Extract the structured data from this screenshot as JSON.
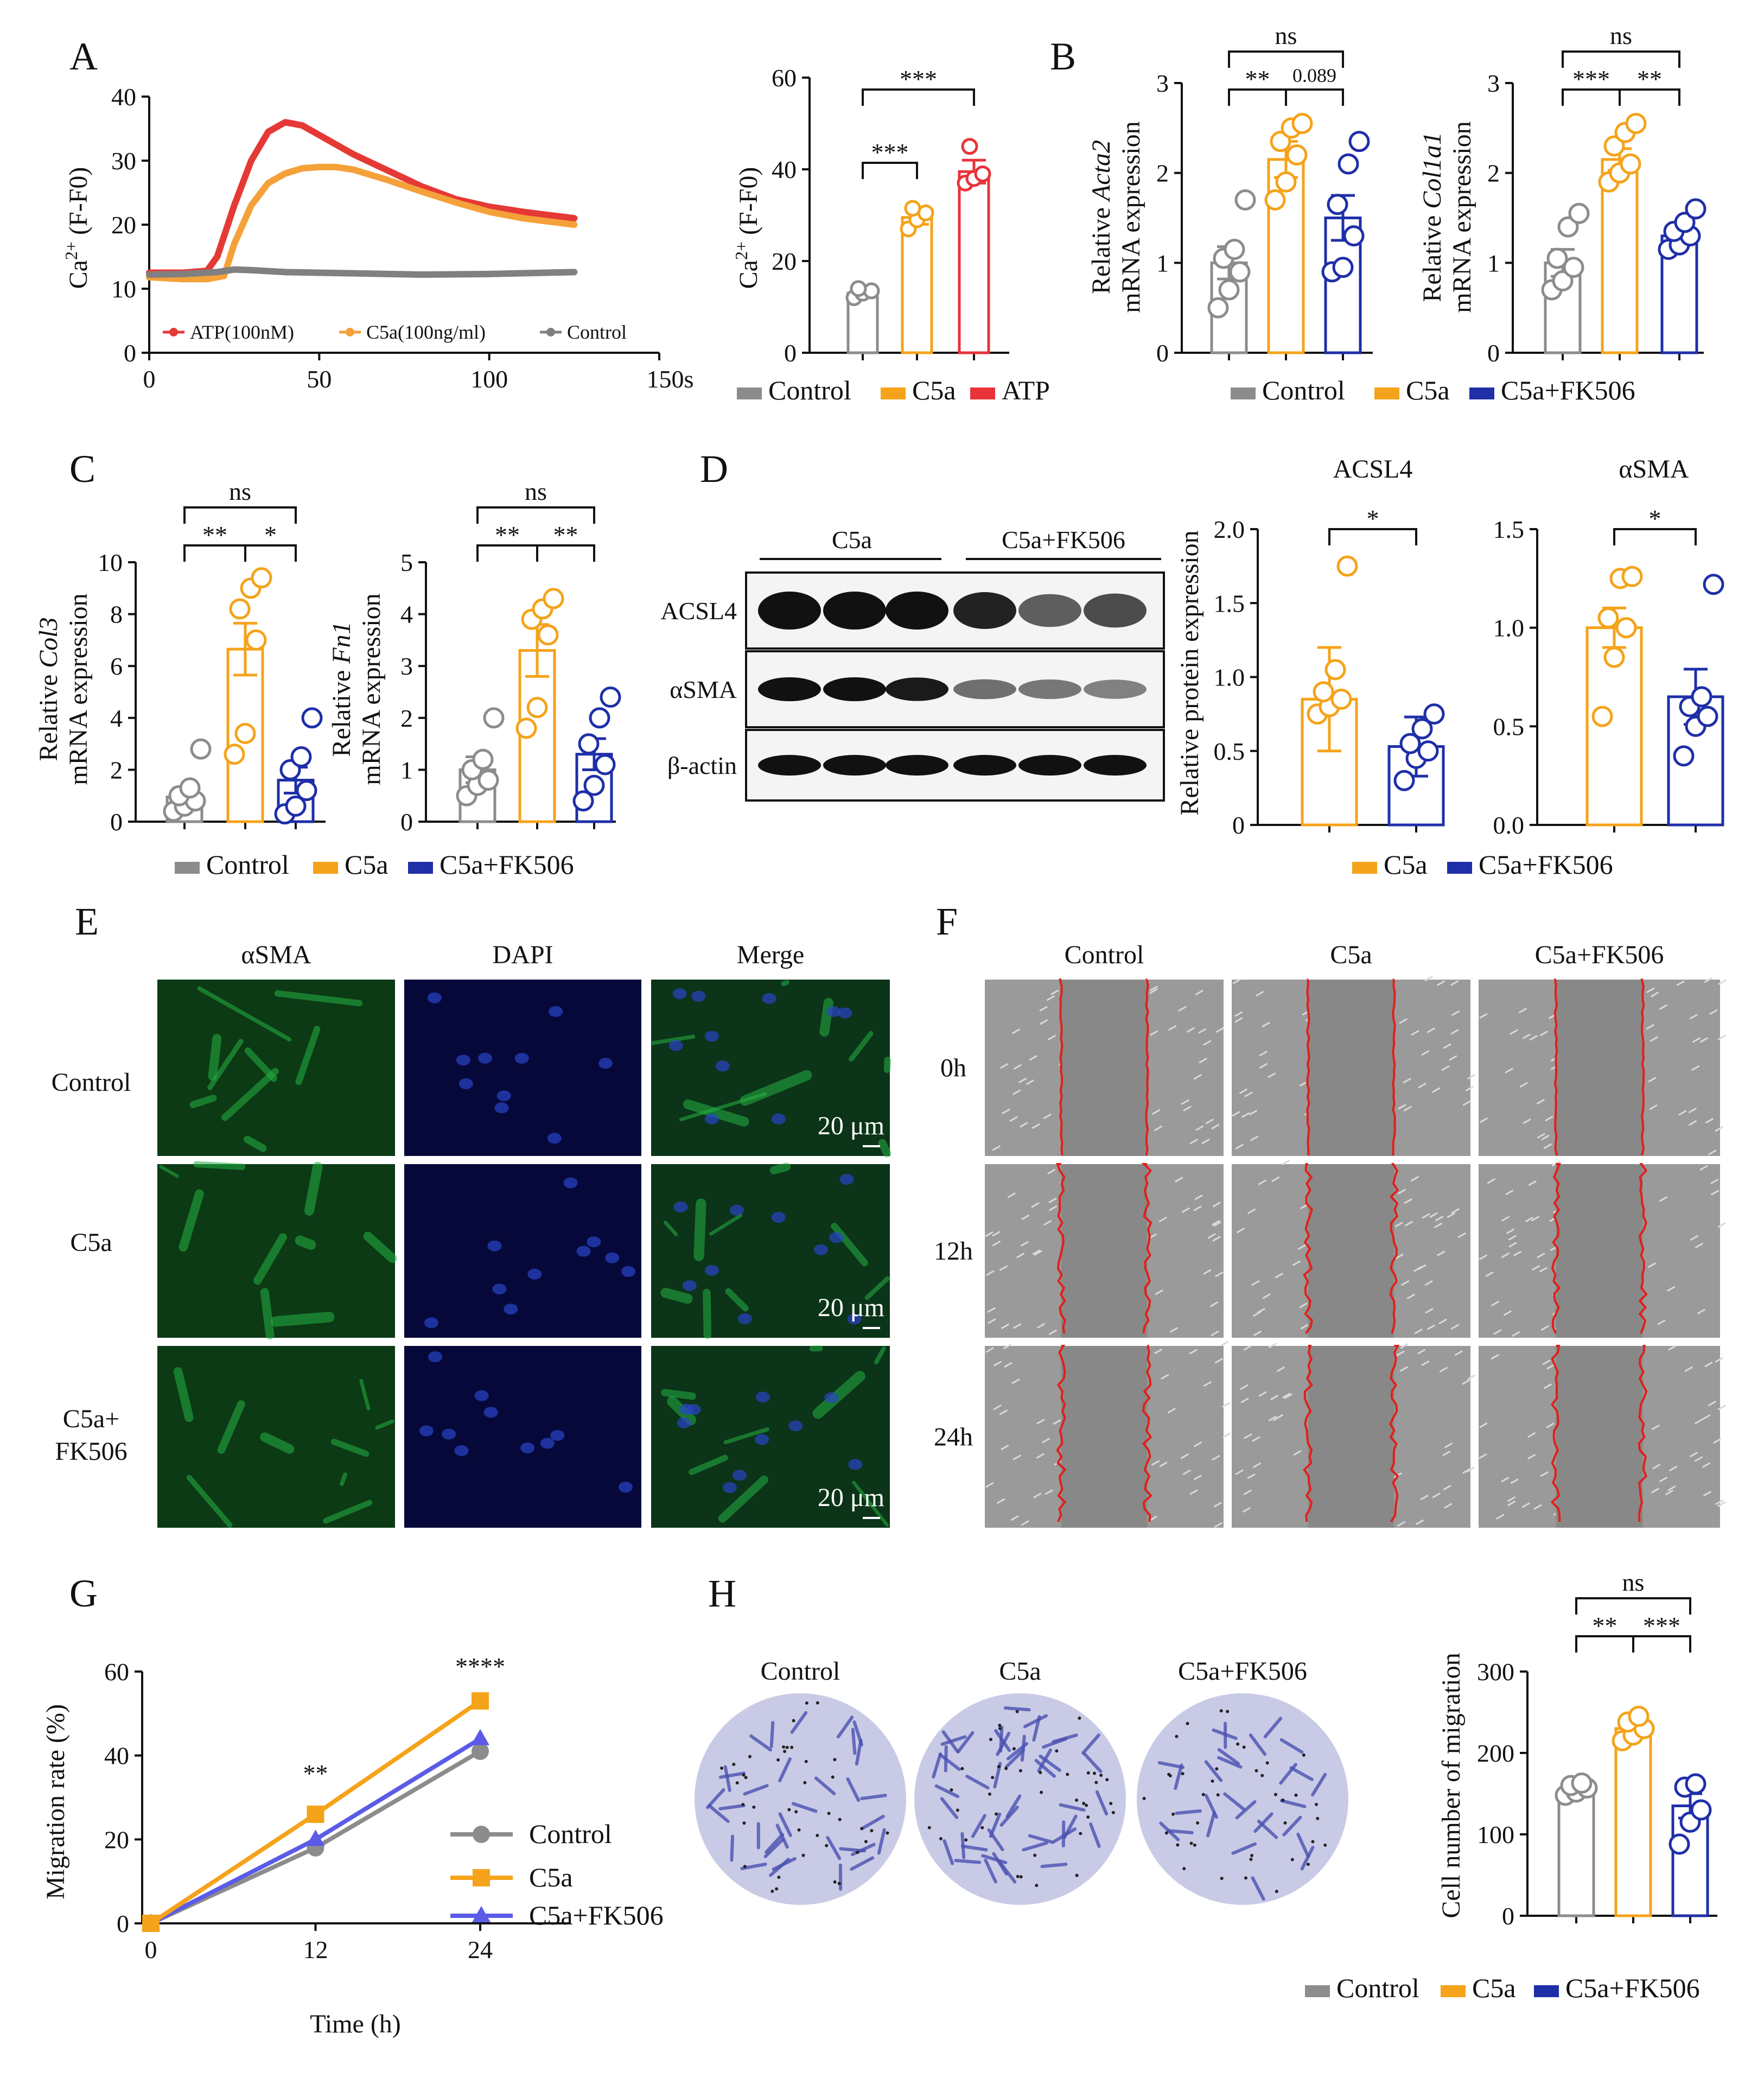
{
  "panels": {
    "A": "A",
    "B": "B",
    "C": "C",
    "D": "D",
    "E": "E",
    "F": "F",
    "G": "G",
    "H": "H"
  },
  "colors": {
    "control": "#8c8c8c",
    "c5a": "#f5a31a",
    "atp": "#e8333a",
    "fk506": "#1f2fa8",
    "trace_control": "#808080",
    "trace_c5a": "#f5a13a",
    "trace_atp": "#e53935",
    "green": "#27b043",
    "blue_nuc": "#2a45c8",
    "wound": "#e0201a"
  },
  "legends": {
    "ctrl_c5a_atp": [
      "Control",
      "C5a",
      "ATP"
    ],
    "ctrl_c5a_fk": [
      "Control",
      "C5a",
      "C5a+FK506"
    ],
    "c5a_fk": [
      "C5a",
      "C5a+FK506"
    ],
    "trace": [
      "ATP(100nM)",
      "C5a(100ng/ml)",
      "Control"
    ]
  },
  "chart_data": [
    {
      "id": "A-trace",
      "type": "line",
      "xlabel": "",
      "ylabel_main": "Ca",
      "ylabel_sup": "2+",
      "ylabel_rest": " (F-F0)",
      "x_ticks": [
        "0",
        "50",
        "100",
        "150s"
      ],
      "y_ticks": [
        "0",
        "10",
        "20",
        "30",
        "40"
      ],
      "xlim": [
        0,
        150
      ],
      "ylim": [
        0,
        40
      ],
      "series": [
        {
          "name": "ATP(100nM)",
          "x": [
            0,
            10,
            17,
            20,
            25,
            30,
            35,
            40,
            45,
            50,
            60,
            70,
            80,
            90,
            100,
            110,
            125
          ],
          "y": [
            12.5,
            12.5,
            12.8,
            15,
            23,
            30,
            34.5,
            36,
            35.5,
            34,
            31,
            28.5,
            26,
            24,
            22.8,
            22,
            21
          ]
        },
        {
          "name": "C5a(100ng/ml)",
          "x": [
            0,
            10,
            17,
            22,
            25,
            30,
            35,
            40,
            45,
            50,
            55,
            60,
            70,
            80,
            90,
            100,
            110,
            125
          ],
          "y": [
            11.8,
            11.5,
            11.5,
            12,
            17,
            23,
            26.5,
            28,
            28.8,
            29,
            29,
            28.6,
            27,
            25.2,
            23.5,
            22,
            21,
            20
          ]
        },
        {
          "name": "Control",
          "x": [
            0,
            10,
            20,
            25,
            30,
            40,
            60,
            80,
            100,
            125
          ],
          "y": [
            12.2,
            12.3,
            12.6,
            13,
            12.9,
            12.6,
            12.4,
            12.2,
            12.3,
            12.6
          ]
        }
      ]
    },
    {
      "id": "A-bar",
      "type": "bar",
      "categories": [
        "Control",
        "C5a",
        "ATP"
      ],
      "ylabel_main": "Ca",
      "ylabel_sup": "2+",
      "ylabel_rest": " (F-F0)",
      "y_ticks": [
        "0",
        "20",
        "40",
        "60"
      ],
      "ylim": [
        0,
        60
      ],
      "values": [
        13,
        29.5,
        39.5
      ],
      "sem": [
        1,
        1.5,
        2.5
      ],
      "points": [
        [
          12,
          13,
          13.5,
          14
        ],
        [
          27,
          29,
          30.5,
          31.5
        ],
        [
          37,
          38,
          39,
          45
        ]
      ],
      "sig": [
        {
          "a": 0,
          "b": 1,
          "label": "***"
        },
        {
          "a": 0,
          "b": 2,
          "label": "***"
        }
      ]
    },
    {
      "id": "B-Acta2",
      "type": "bar",
      "categories": [
        "Control",
        "C5a",
        "C5a+FK506"
      ],
      "ylabel_pre": "Relative ",
      "ylabel_gene": "Acta2",
      "ylabel2": "mRNA expression",
      "y_ticks": [
        "0",
        "1",
        "2",
        "3"
      ],
      "ylim": [
        0,
        3
      ],
      "values": [
        1.0,
        2.15,
        1.5
      ],
      "sem": [
        0.18,
        0.2,
        0.25
      ],
      "points": [
        [
          0.5,
          0.7,
          0.9,
          1.05,
          1.15,
          1.7
        ],
        [
          1.7,
          1.9,
          2.2,
          2.35,
          2.5,
          2.55
        ],
        [
          0.9,
          0.95,
          1.3,
          1.65,
          2.1,
          2.35
        ]
      ],
      "sig": [
        {
          "a": 0,
          "b": 1,
          "label": "**"
        },
        {
          "a": 1,
          "b": 2,
          "label": "0.089"
        },
        {
          "a": 0,
          "b": 2,
          "label": "ns"
        }
      ]
    },
    {
      "id": "B-Col1a1",
      "type": "bar",
      "categories": [
        "Control",
        "C5a",
        "C5a+FK506"
      ],
      "ylabel_pre": "Relative ",
      "ylabel_gene": "Col1a1",
      "ylabel2": "mRNA expression",
      "y_ticks": [
        "0",
        "1",
        "2",
        "3"
      ],
      "ylim": [
        0,
        3
      ],
      "values": [
        1.0,
        2.15,
        1.3
      ],
      "sem": [
        0.15,
        0.12,
        0.08
      ],
      "points": [
        [
          0.7,
          0.8,
          0.95,
          1.05,
          1.4,
          1.55
        ],
        [
          1.9,
          2.0,
          2.1,
          2.3,
          2.45,
          2.55
        ],
        [
          1.15,
          1.2,
          1.3,
          1.35,
          1.45,
          1.6
        ]
      ],
      "sig": [
        {
          "a": 0,
          "b": 1,
          "label": "***"
        },
        {
          "a": 1,
          "b": 2,
          "label": "**"
        },
        {
          "a": 0,
          "b": 2,
          "label": "ns"
        }
      ]
    },
    {
      "id": "C-Col3",
      "type": "bar",
      "categories": [
        "Control",
        "C5a",
        "C5a+FK506"
      ],
      "ylabel_pre": "Relative ",
      "ylabel_gene": "Col3",
      "ylabel2": "mRNA expression",
      "y_ticks": [
        "0",
        "2",
        "4",
        "6",
        "8",
        "10"
      ],
      "ylim": [
        0,
        10
      ],
      "values": [
        0.95,
        6.65,
        1.6
      ],
      "sem": [
        0.35,
        1.0,
        0.5
      ],
      "points": [
        [
          0.4,
          0.6,
          0.8,
          1.0,
          1.3,
          2.8
        ],
        [
          2.6,
          3.4,
          7.0,
          8.2,
          9.0,
          9.4
        ],
        [
          0.3,
          0.6,
          1.2,
          2.0,
          2.5,
          4.0
        ]
      ],
      "sig": [
        {
          "a": 0,
          "b": 1,
          "label": "**"
        },
        {
          "a": 1,
          "b": 2,
          "label": "*"
        },
        {
          "a": 0,
          "b": 2,
          "label": "ns"
        }
      ]
    },
    {
      "id": "C-Fn1",
      "type": "bar",
      "categories": [
        "Control",
        "C5a",
        "C5a+FK506"
      ],
      "ylabel_pre": "Relative ",
      "ylabel_gene": "Fn1",
      "ylabel2": "mRNA expression",
      "y_ticks": [
        "0",
        "1",
        "2",
        "3",
        "4",
        "5"
      ],
      "ylim": [
        0,
        5
      ],
      "values": [
        1.0,
        3.3,
        1.3
      ],
      "sem": [
        0.25,
        0.5,
        0.3
      ],
      "points": [
        [
          0.5,
          0.7,
          0.8,
          1.0,
          1.2,
          2.0
        ],
        [
          1.8,
          2.2,
          3.6,
          3.9,
          4.1,
          4.3
        ],
        [
          0.4,
          0.7,
          1.1,
          1.5,
          2.0,
          2.4
        ]
      ],
      "sig": [
        {
          "a": 0,
          "b": 1,
          "label": "**"
        },
        {
          "a": 1,
          "b": 2,
          "label": "**"
        },
        {
          "a": 0,
          "b": 2,
          "label": "ns"
        }
      ]
    },
    {
      "id": "D-ACSL4",
      "type": "bar",
      "title": "ACSL4",
      "categories": [
        "C5a",
        "C5a+FK506"
      ],
      "ylabel": "Relative protein expression",
      "y_ticks": [
        "0",
        "0.5",
        "1.0",
        "1.5",
        "2.0"
      ],
      "ylim": [
        0,
        2.0
      ],
      "values": [
        0.85,
        0.53
      ],
      "sem": [
        0.35,
        0.2
      ],
      "points": [
        [
          0.75,
          0.8,
          0.85,
          0.9,
          1.05,
          1.75
        ],
        [
          0.3,
          0.45,
          0.5,
          0.55,
          0.65,
          0.75
        ]
      ],
      "sig": [
        {
          "a": 0,
          "b": 1,
          "label": "*"
        }
      ]
    },
    {
      "id": "D-aSMA",
      "type": "bar",
      "title": "αSMA",
      "categories": [
        "C5a",
        "C5a+FK506"
      ],
      "ylabel": "",
      "y_ticks": [
        "0.0",
        "0.5",
        "1.0",
        "1.5"
      ],
      "ylim": [
        0,
        1.5
      ],
      "values": [
        1.0,
        0.65
      ],
      "sem": [
        0.1,
        0.14
      ],
      "points": [
        [
          0.55,
          0.85,
          1.0,
          1.05,
          1.25,
          1.26
        ],
        [
          0.35,
          0.5,
          0.55,
          0.6,
          0.65,
          1.22
        ]
      ],
      "sig": [
        {
          "a": 0,
          "b": 1,
          "label": "*"
        }
      ]
    },
    {
      "id": "G",
      "type": "line",
      "xlabel": "Time (h)",
      "ylabel": "Migration rate (%)",
      "x": [
        0,
        12,
        24
      ],
      "x_ticks": [
        "0",
        "12",
        "24"
      ],
      "y_ticks": [
        "0",
        "20",
        "40",
        "60"
      ],
      "ylim": [
        0,
        60
      ],
      "series": [
        {
          "name": "Control",
          "values": [
            0,
            18,
            41
          ]
        },
        {
          "name": "C5a",
          "values": [
            0,
            26,
            53
          ]
        },
        {
          "name": "C5a+FK506",
          "values": [
            0,
            20,
            44
          ]
        }
      ],
      "sig": [
        {
          "x": 12,
          "label": "**"
        },
        {
          "x": 24,
          "label": "****"
        }
      ]
    },
    {
      "id": "H-bar",
      "type": "bar",
      "categories": [
        "Control",
        "C5a",
        "C5a+FK506"
      ],
      "ylabel": "Cell number of  migration",
      "y_ticks": [
        "0",
        "100",
        "200",
        "300"
      ],
      "ylim": [
        0,
        300
      ],
      "values": [
        155,
        230,
        135
      ],
      "sem": [
        5,
        8,
        15
      ],
      "points": [
        [
          148,
          152,
          157,
          160,
          163
        ],
        [
          215,
          222,
          230,
          238,
          245
        ],
        [
          88,
          115,
          130,
          158,
          162
        ]
      ],
      "sig": [
        {
          "a": 0,
          "b": 1,
          "label": "**"
        },
        {
          "a": 1,
          "b": 2,
          "label": "***"
        },
        {
          "a": 0,
          "b": 2,
          "label": "ns"
        }
      ]
    }
  ],
  "blot": {
    "groups": [
      "C5a",
      "C5a+FK506"
    ],
    "rows": [
      "ACSL4",
      "αSMA",
      "β-actin"
    ]
  },
  "panelE": {
    "cols": [
      "αSMA",
      "DAPI",
      "Merge"
    ],
    "rows": [
      "Control",
      "C5a",
      "C5a+",
      "FK506"
    ],
    "scale": "20 μm"
  },
  "panelF": {
    "cols": [
      "Control",
      "C5a",
      "C5a+FK506"
    ],
    "rows": [
      "0h",
      "12h",
      "24h"
    ]
  },
  "panelH": {
    "cols": [
      "Control",
      "C5a",
      "C5a+FK506"
    ]
  }
}
